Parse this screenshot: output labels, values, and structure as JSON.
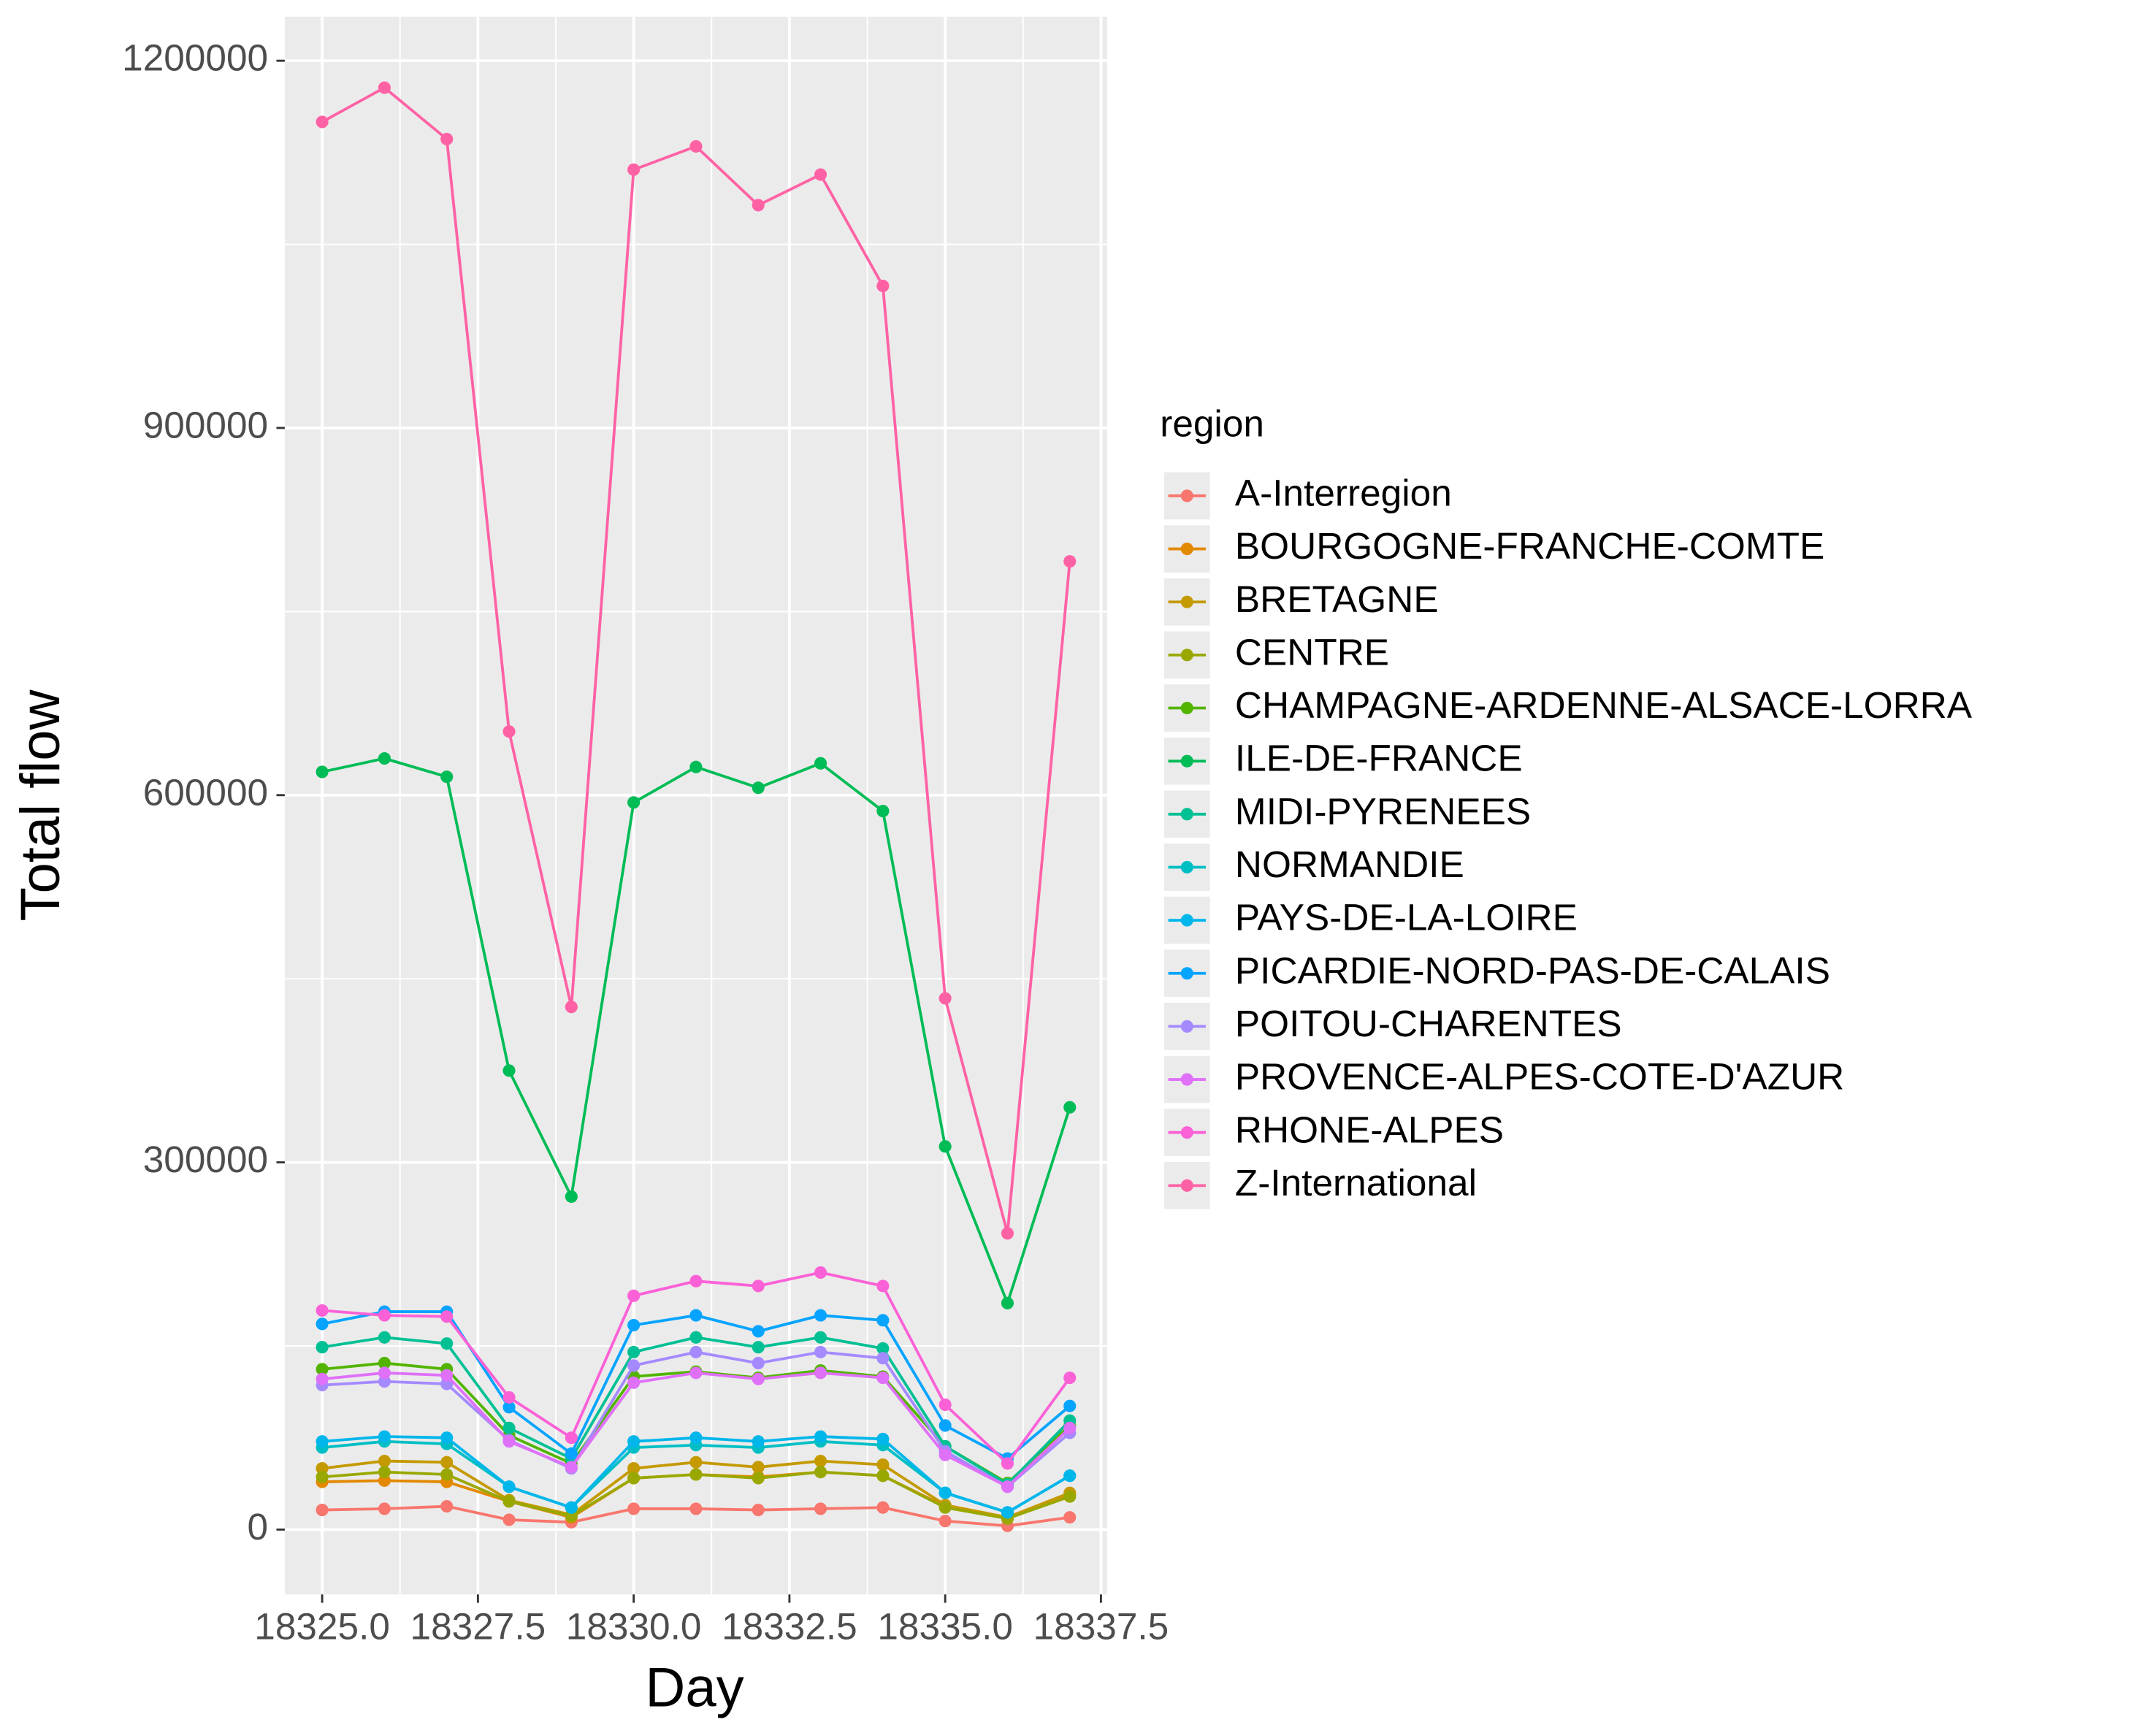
{
  "chart_data": {
    "type": "line",
    "x_label": "Day",
    "y_label": "Total flow",
    "legend_title": "region",
    "x": [
      18325,
      18326,
      18327,
      18328,
      18329,
      18330,
      18331,
      18332,
      18333,
      18334,
      18335,
      18336,
      18337
    ],
    "xlim": [
      18324.4,
      18337.6
    ],
    "xticks": [
      {
        "value": 18325,
        "label": "18325.0"
      },
      {
        "value": 18327.5,
        "label": "18327.5"
      },
      {
        "value": 18330,
        "label": "18330.0"
      },
      {
        "value": 18332.5,
        "label": "18332.5"
      },
      {
        "value": 18335,
        "label": "18335.0"
      },
      {
        "value": 18337.5,
        "label": "18337.5"
      }
    ],
    "ylim": [
      -53000,
      1236000
    ],
    "yticks": [
      0,
      300000,
      600000,
      900000,
      1200000
    ],
    "grid": true,
    "legend": "right",
    "series": [
      {
        "name": "A-Interregion",
        "color": "#F8766D",
        "values": [
          16000,
          17000,
          19000,
          8000,
          6000,
          17000,
          17000,
          16000,
          17000,
          18000,
          7000,
          3000,
          10000
        ]
      },
      {
        "name": "BOURGOGNE-FRANCHE-COMTE",
        "color": "#E38900",
        "values": [
          39000,
          40000,
          39000,
          23000,
          10000,
          42000,
          45000,
          43000,
          47000,
          44000,
          19000,
          9000,
          28000
        ]
      },
      {
        "name": "BRETAGNE",
        "color": "#C49A00",
        "values": [
          50000,
          56000,
          55000,
          24000,
          12000,
          50000,
          55000,
          51000,
          56000,
          53000,
          20000,
          10000,
          30000
        ]
      },
      {
        "name": "CENTRE",
        "color": "#99A800",
        "values": [
          43000,
          47000,
          45000,
          23000,
          11000,
          42000,
          45000,
          42000,
          47000,
          44000,
          18000,
          9000,
          27000
        ]
      },
      {
        "name": "CHAMPAGNE-ARDENNE-ALSACE-LORRA",
        "color": "#53B400",
        "values": [
          131000,
          136000,
          131000,
          77000,
          54000,
          125000,
          129000,
          124000,
          130000,
          125000,
          68000,
          38000,
          85000
        ]
      },
      {
        "name": "ILE-DE-FRANCE",
        "color": "#00BC56",
        "values": [
          619000,
          630000,
          615000,
          375000,
          272000,
          594000,
          623000,
          606000,
          626000,
          587000,
          313000,
          185000,
          345000
        ]
      },
      {
        "name": "MIDI-PYRENEES",
        "color": "#00C094",
        "values": [
          149000,
          157000,
          152000,
          83000,
          58000,
          145000,
          157000,
          149000,
          157000,
          148000,
          68000,
          37000,
          89000
        ]
      },
      {
        "name": "NORMANDIE",
        "color": "#00BFC4",
        "values": [
          67000,
          72000,
          70000,
          35000,
          18000,
          67000,
          69000,
          67000,
          72000,
          69000,
          30000,
          14000,
          44000
        ]
      },
      {
        "name": "PAYS-DE-LA-LOIRE",
        "color": "#00B6EB",
        "values": [
          72000,
          76000,
          75000,
          35000,
          18000,
          72000,
          75000,
          72000,
          76000,
          74000,
          30000,
          14000,
          44000
        ]
      },
      {
        "name": "PICARDIE-NORD-PAS-DE-CALAIS",
        "color": "#06A4FF",
        "values": [
          168000,
          178000,
          178000,
          100000,
          62000,
          167000,
          175000,
          162000,
          175000,
          171000,
          85000,
          58000,
          101000
        ]
      },
      {
        "name": "POITOU-CHARENTES",
        "color": "#A58AFF",
        "values": [
          118000,
          121000,
          119000,
          73000,
          50000,
          134000,
          145000,
          136000,
          145000,
          140000,
          64000,
          35000,
          79000
        ]
      },
      {
        "name": "PROVENCE-ALPES-COTE-D'AZUR",
        "color": "#DF70F8",
        "values": [
          123000,
          128000,
          126000,
          72000,
          51000,
          120000,
          128000,
          123000,
          128000,
          124000,
          61000,
          35000,
          83000
        ]
      },
      {
        "name": "RHONE-ALPES",
        "color": "#FB61D7",
        "values": [
          179000,
          175000,
          174000,
          108000,
          75000,
          191000,
          203000,
          199000,
          210000,
          199000,
          102000,
          54000,
          124000
        ]
      },
      {
        "name": "Z-International",
        "color": "#FF62A4",
        "values": [
          1150000,
          1178000,
          1136000,
          652000,
          427000,
          1111000,
          1130000,
          1082000,
          1107000,
          1016000,
          434000,
          242000,
          791000
        ]
      }
    ]
  }
}
